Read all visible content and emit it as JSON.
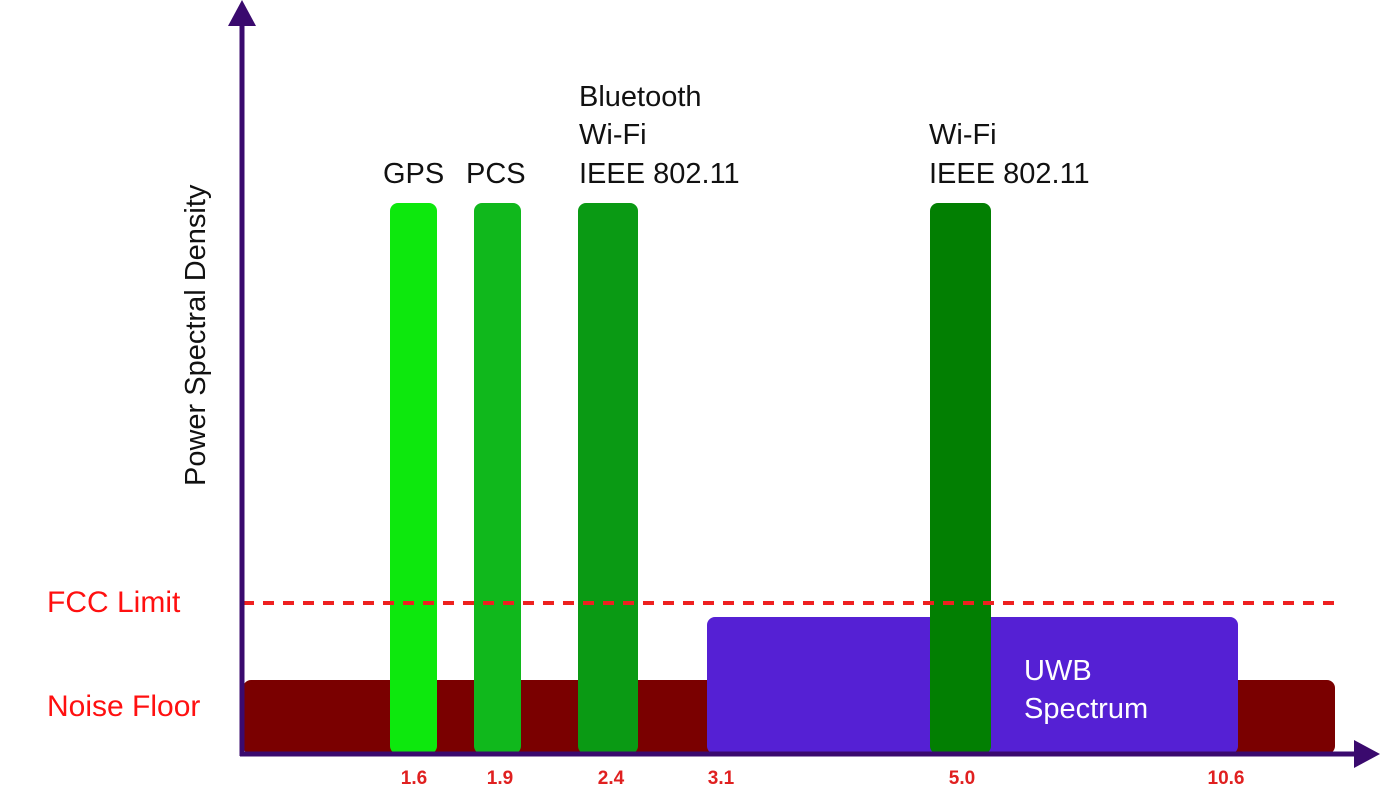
{
  "y_axis_label": "Power Spectral Density",
  "fcc_limit_label": "FCC Limit",
  "noise_floor_label": "Noise Floor",
  "ticks": [
    "1.6",
    "1.9",
    "2.4",
    "3.1",
    "5.0",
    "10.6"
  ],
  "bands": [
    {
      "lines": [
        "GPS"
      ],
      "color": "#0de80d"
    },
    {
      "lines": [
        "PCS"
      ],
      "color": "#10b81c"
    },
    {
      "lines": [
        "Bluetooth",
        "Wi-Fi",
        "IEEE 802.11"
      ],
      "color": "#0a9a14"
    },
    {
      "lines": [
        "Wi-Fi",
        "IEEE 802.11"
      ],
      "color": "#027f02"
    }
  ],
  "uwb": {
    "lines": [
      "UWB",
      "Spectrum"
    ],
    "color": "#5520d4"
  },
  "colors": {
    "axis": "#3a0a6e",
    "noise_floor": "#7a0000",
    "fcc_line": "#ee2020"
  }
}
